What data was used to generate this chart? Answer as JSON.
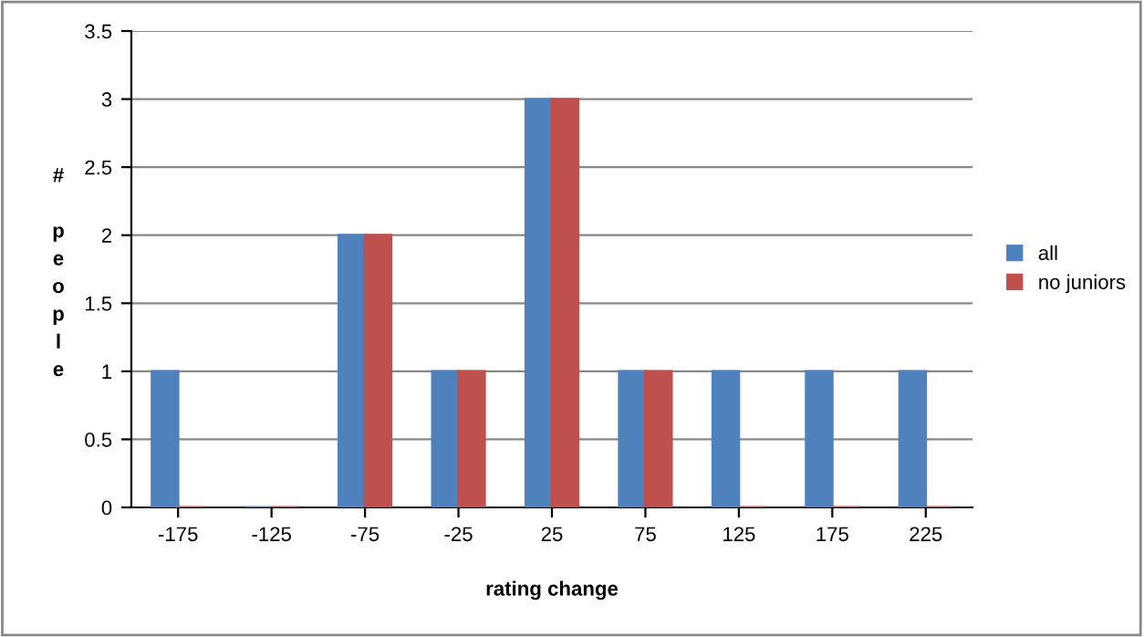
{
  "chart_data": {
    "type": "bar",
    "xlabel": "rating change",
    "ylabel": "# people",
    "categories": [
      "-175",
      "-125",
      "-75",
      "-25",
      "25",
      "75",
      "125",
      "175",
      "225"
    ],
    "series": [
      {
        "name": "all",
        "color": "#4f81bd",
        "values": [
          1,
          0,
          2,
          1,
          3,
          1,
          1,
          1,
          1
        ]
      },
      {
        "name": "no juniors",
        "color": "#c0504d",
        "values": [
          0,
          0,
          2,
          1,
          3,
          1,
          0,
          0,
          0
        ]
      }
    ],
    "ylim": [
      0,
      3.5
    ],
    "yticks": [
      0,
      0.5,
      1,
      1.5,
      2,
      2.5,
      3,
      3.5
    ],
    "grid": "y",
    "legend": "right"
  }
}
